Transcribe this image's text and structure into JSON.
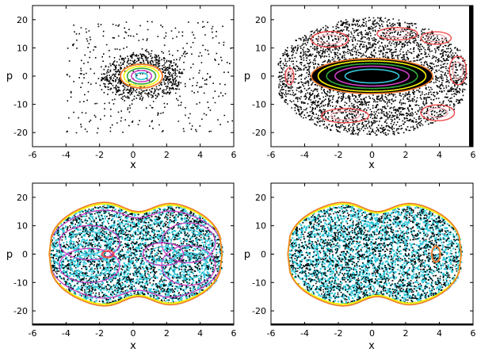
{
  "figure": {
    "background": "#ffffff",
    "colors": {
      "points": "#000000",
      "cyan": "#33c6d8",
      "magenta": "#c63cc0",
      "yellow": "#f2f20a",
      "orange": "#f07a2a",
      "red": "#f04a4a",
      "green": "#32a83a",
      "pink": "#f2a0a8"
    }
  },
  "chart_data": [
    {
      "type": "scatter",
      "panel": "top-left",
      "title": "",
      "xlabel": "x",
      "ylabel": "p",
      "xlim": [
        -6,
        6
      ],
      "ylim": [
        -25,
        25
      ],
      "xticks": [
        "-6",
        "-4",
        "-2",
        "0",
        "2",
        "4",
        "6"
      ],
      "yticks": [
        "20",
        "10",
        "0",
        "-10",
        "-20"
      ],
      "description_series": [
        {
          "kind": "sparse chaotic scatter",
          "x_range": [
            -4,
            6
          ],
          "p_range": [
            -20,
            20
          ],
          "color": "points"
        },
        {
          "kind": "regular island",
          "center": [
            0.5,
            0
          ],
          "x_halfwidth": 1.2,
          "p_halfwidth": 4,
          "colors": [
            "orange",
            "yellow",
            "green",
            "magenta",
            "cyan"
          ]
        }
      ]
    },
    {
      "type": "scatter",
      "panel": "top-right",
      "title": "",
      "xlabel": "x",
      "ylabel": "p",
      "xlim": [
        -6,
        6
      ],
      "ylim": [
        -25,
        25
      ],
      "xticks": [
        "-6",
        "-4",
        "-2",
        "0",
        "2",
        "4",
        "6"
      ],
      "yticks": [
        "20",
        "10",
        "0",
        "-10",
        "-20"
      ],
      "description_series": [
        {
          "kind": "dense chaotic sea",
          "x_range": [
            -5.5,
            5.5
          ],
          "p_range": [
            -20,
            20
          ],
          "color": "points"
        },
        {
          "kind": "elongated regular island",
          "center": [
            0,
            0
          ],
          "x_halfwidth": 3.5,
          "p_halfwidth": 6,
          "colors": [
            "orange",
            "yellow",
            "green",
            "magenta",
            "cyan"
          ]
        },
        {
          "kind": "small resonance islands",
          "color": "red"
        }
      ]
    },
    {
      "type": "scatter",
      "panel": "bottom-left",
      "title": "",
      "xlabel": "x",
      "ylabel": "p",
      "xlim": [
        -6,
        6
      ],
      "ylim": [
        -25,
        25
      ],
      "xticks": [
        "-6",
        "-4",
        "-2",
        "0",
        "2",
        "4",
        "6"
      ],
      "yticks": [
        "20",
        "10",
        "0",
        "-10",
        "-20"
      ],
      "description_series": [
        {
          "kind": "bounded dumbbell region",
          "x_range": [
            -5,
            5.3
          ],
          "p_range": [
            -20,
            20
          ],
          "colors": [
            "cyan",
            "magenta",
            "points"
          ]
        },
        {
          "kind": "boundary curves",
          "colors": [
            "orange",
            "yellow"
          ]
        },
        {
          "kind": "small center island",
          "center": [
            -1.5,
            0
          ],
          "color": "red"
        }
      ]
    },
    {
      "type": "scatter",
      "panel": "bottom-right",
      "title": "",
      "xlabel": "x",
      "ylabel": "p",
      "xlim": [
        -6,
        6
      ],
      "ylim": [
        -25,
        25
      ],
      "xticks": [
        "-6",
        "-4",
        "-2",
        "0",
        "2",
        "4",
        "6"
      ],
      "yticks": [
        "20",
        "10",
        "0",
        "-10",
        "-20"
      ],
      "description_series": [
        {
          "kind": "bounded dumbbell region, nearly fully chaotic",
          "x_range": [
            -5,
            5.3
          ],
          "p_range": [
            -20,
            20
          ],
          "colors": [
            "cyan",
            "points"
          ]
        },
        {
          "kind": "boundary curves",
          "colors": [
            "orange",
            "yellow"
          ]
        },
        {
          "kind": "small island",
          "center": [
            3.8,
            0
          ],
          "color": "orange"
        }
      ]
    }
  ]
}
